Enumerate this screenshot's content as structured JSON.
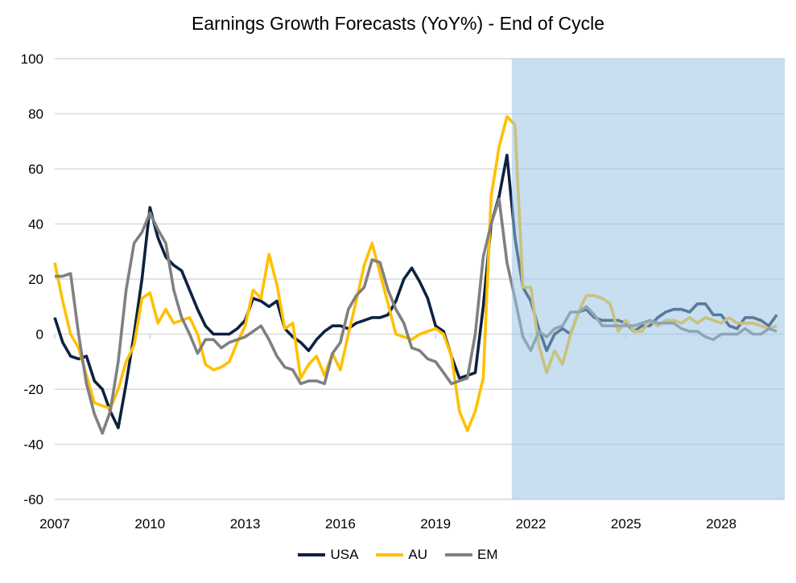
{
  "chart_data": {
    "type": "line",
    "title": "Earnings Growth Forecasts (YoY%) - End of Cycle",
    "xlabel": "",
    "ylabel": "",
    "xlim": [
      2007,
      2030
    ],
    "ylim": [
      -60,
      100
    ],
    "yticks": [
      100,
      80,
      60,
      40,
      20,
      0,
      -20,
      -40,
      -60
    ],
    "xticks": [
      2007,
      2010,
      2013,
      2016,
      2019,
      2022,
      2025,
      2028
    ],
    "grid": "horizontal",
    "legend": "bottom",
    "x_start": 2007,
    "x_step": 0.25,
    "shaded_forecast_region": {
      "from": 2021.4,
      "to": 2030,
      "color": "#9bc2e6"
    },
    "series": [
      {
        "name": "USA",
        "color": "#0d2240",
        "values": [
          6,
          -3,
          -8,
          -9,
          -8,
          -17,
          -20,
          -28,
          -34,
          -18,
          0,
          20,
          46,
          35,
          28,
          25,
          23,
          16,
          9,
          3,
          0,
          0,
          0,
          2,
          5,
          13,
          12,
          10,
          12,
          2,
          -1,
          -3,
          -6,
          -2,
          1,
          3,
          3,
          2,
          4,
          5,
          6,
          6,
          7,
          12,
          20,
          24,
          19,
          13,
          3,
          1,
          -8,
          -16,
          -15,
          -14,
          10,
          40,
          50,
          65,
          35,
          17,
          12,
          2,
          -6,
          0,
          2,
          0,
          8,
          9,
          6,
          5,
          5,
          5,
          4,
          1,
          3,
          3,
          6,
          8,
          9,
          9,
          8,
          11,
          11,
          7,
          7,
          3,
          2,
          6,
          6,
          5,
          3,
          7
        ]
      },
      {
        "name": "AU",
        "color": "#ffc000",
        "values": [
          26,
          12,
          0,
          -5,
          -15,
          -25,
          -26,
          -27,
          -20,
          -10,
          -4,
          13,
          15,
          4,
          9,
          4,
          5,
          6,
          0,
          -11,
          -13,
          -12,
          -10,
          -3,
          3,
          16,
          13,
          29,
          18,
          2,
          4,
          -16,
          -11,
          -8,
          -15,
          -7,
          -13,
          0,
          12,
          25,
          33,
          22,
          11,
          0,
          -1,
          -2,
          0,
          1,
          2,
          0,
          -8,
          -28,
          -35,
          -28,
          -16,
          50,
          68,
          79,
          76,
          17,
          17,
          -4,
          -14,
          -6,
          -11,
          0,
          8,
          14,
          14,
          13,
          11,
          1,
          5,
          1,
          1,
          5,
          3,
          5,
          5,
          4,
          6,
          4,
          6,
          5,
          4,
          6,
          4,
          4,
          4,
          3,
          2,
          3
        ]
      },
      {
        "name": "EM",
        "color": "#808080",
        "values": [
          21,
          21,
          22,
          0,
          -18,
          -29,
          -36,
          -28,
          -10,
          16,
          33,
          37,
          44,
          38,
          33,
          16,
          6,
          0,
          -7,
          -2,
          -2,
          -5,
          -3,
          -2,
          -1,
          1,
          3,
          -2,
          -8,
          -12,
          -13,
          -18,
          -17,
          -17,
          -18,
          -7,
          -3,
          9,
          14,
          17,
          27,
          26,
          16,
          9,
          4,
          -5,
          -6,
          -9,
          -10,
          -14,
          -18,
          -17,
          -16,
          0,
          28,
          40,
          49,
          26,
          13,
          -1,
          -6,
          1,
          -1,
          2,
          3,
          8,
          8,
          10,
          7,
          3,
          3,
          3,
          3,
          3,
          4,
          5,
          4,
          4,
          4,
          2,
          1,
          1,
          -1,
          -2,
          0,
          0,
          0,
          2,
          0,
          0,
          2,
          1
        ]
      }
    ]
  }
}
